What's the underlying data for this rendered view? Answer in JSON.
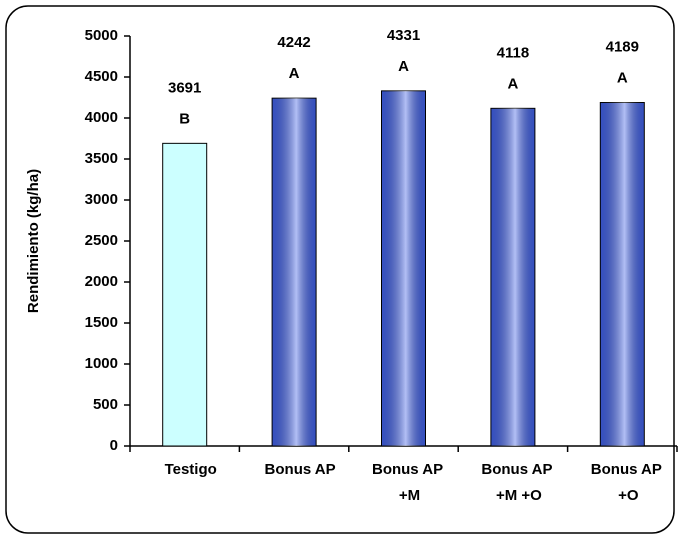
{
  "chart_data": {
    "type": "bar",
    "y_label": "Rendimiento (kg/ha)",
    "categories": [
      "Testigo",
      "Bonus AP",
      "Bonus AP +M",
      "Bonus AP +M +O",
      "Bonus AP +O"
    ],
    "values": [
      3691,
      4242,
      4331,
      4118,
      4189
    ],
    "letters": [
      "B",
      "A",
      "A",
      "A",
      "A"
    ],
    "colors": [
      "#ccffff",
      "#3f5fe6",
      "#3f5fe6",
      "#3f5fe6",
      "#3f5fe6"
    ],
    "ylim": [
      0,
      5000
    ],
    "yticks": [
      0,
      500,
      1000,
      1500,
      2000,
      2500,
      3000,
      3500,
      4000,
      4500,
      5000
    ],
    "grid": false
  }
}
